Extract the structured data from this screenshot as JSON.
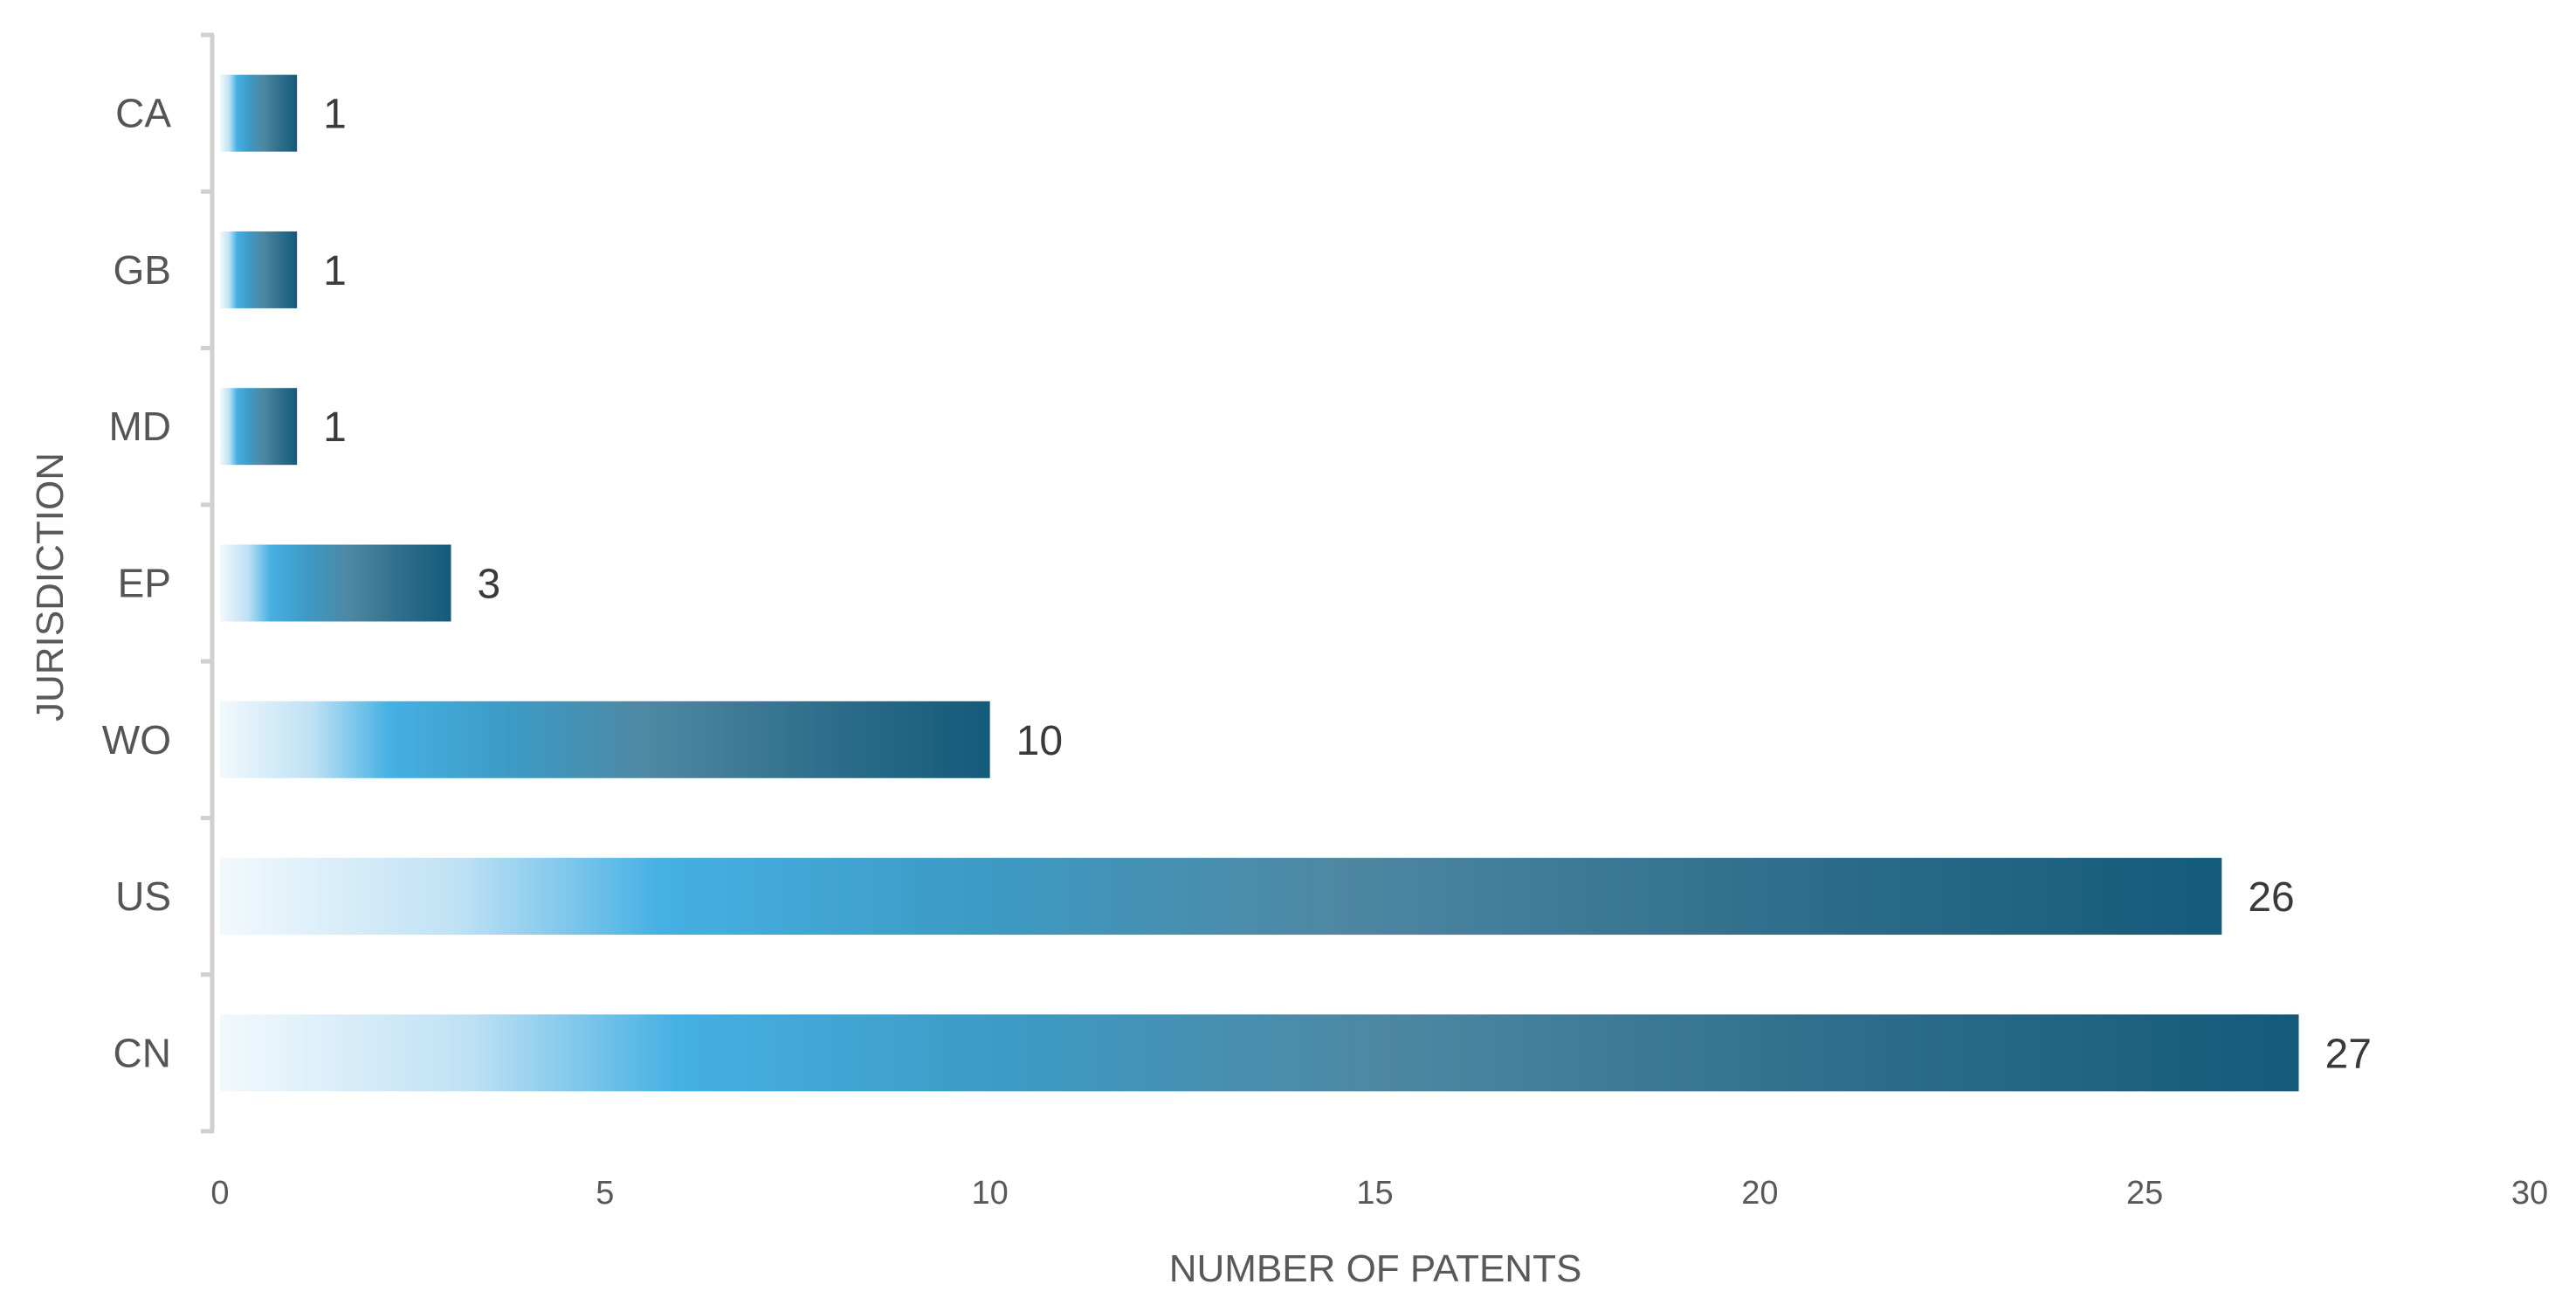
{
  "chart_data": {
    "type": "bar",
    "orientation": "horizontal",
    "categories": [
      "CA",
      "GB",
      "MD",
      "EP",
      "WO",
      "US",
      "CN"
    ],
    "values": [
      1,
      1,
      1,
      3,
      10,
      26,
      27
    ],
    "data_labels": [
      "1",
      "1",
      "1",
      "3",
      "10",
      "26",
      "27"
    ],
    "xlabel": "NUMBER OF PATENTS",
    "ylabel": "JURISDICTION",
    "xlim": [
      0,
      30
    ],
    "xticks": [
      "0",
      "5",
      "10",
      "15",
      "20",
      "25",
      "30"
    ],
    "grid": false,
    "legend": "none",
    "colors": {
      "gradient": [
        "#f2f9fd",
        "#bfe1f4",
        "#45b0e4",
        "#3d9ac4",
        "#4e87a2",
        "#2f6e8c",
        "#145a7a"
      ],
      "axis": "#d0d0d0"
    }
  }
}
